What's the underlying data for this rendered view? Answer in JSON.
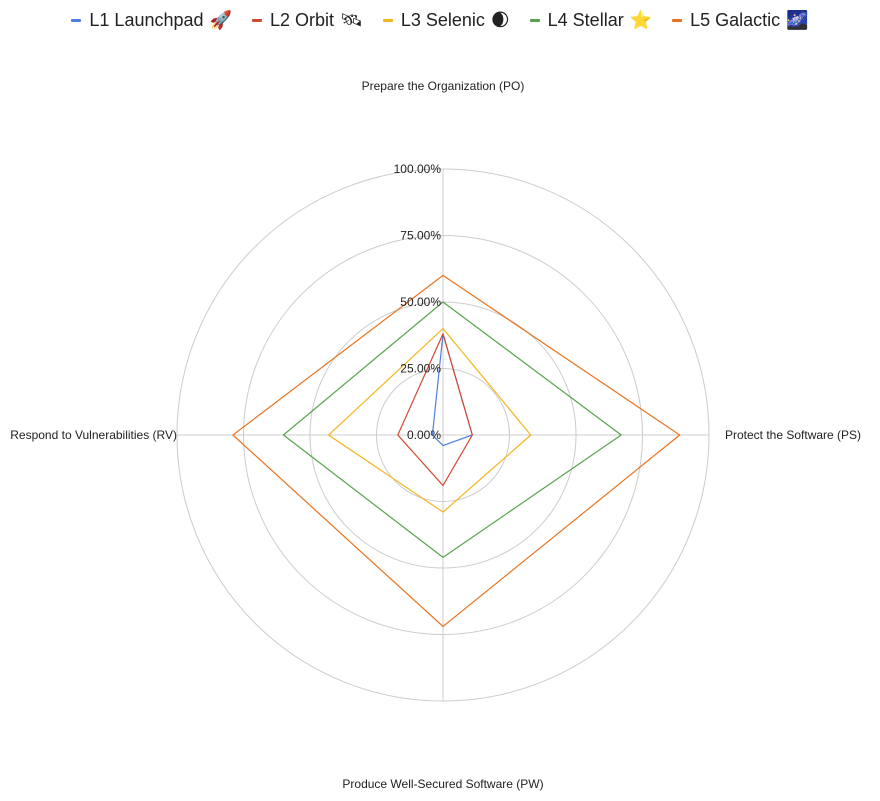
{
  "chart_data": {
    "type": "radar",
    "axes": [
      "Prepare the Organization (PO)",
      "Protect the Software (PS)",
      "Produce Well-Secured Software (PW)",
      "Respond to Vulnerabilities (RV)"
    ],
    "radial_range": [
      0,
      1
    ],
    "radial_ticks": [
      "0.00%",
      "25.00%",
      "50.00%",
      "75.00%",
      "100.00%"
    ],
    "radial_tick_values": [
      0,
      0.25,
      0.5,
      0.75,
      1
    ],
    "grid": true,
    "legend_position": "top",
    "series": [
      {
        "name": "L1 Launchpad",
        "emoji": "🚀",
        "color": "#4f7fe0",
        "values": [
          0.38,
          0.11,
          0.04,
          0.04
        ]
      },
      {
        "name": "L2 Orbit",
        "emoji": "🛰",
        "color": "#d2492f",
        "values": [
          0.38,
          0.11,
          0.19,
          0.17
        ]
      },
      {
        "name": "L3 Selenic",
        "emoji": "🌒",
        "color": "#f3b51c",
        "values": [
          0.4,
          0.33,
          0.29,
          0.43
        ]
      },
      {
        "name": "L4 Stellar",
        "emoji": "⭐",
        "color": "#57a34b",
        "values": [
          0.5,
          0.67,
          0.46,
          0.6
        ]
      },
      {
        "name": "L5 Galactic",
        "emoji": "🌌",
        "color": "#e8731e",
        "values": [
          0.6,
          0.89,
          0.72,
          0.79
        ]
      }
    ]
  }
}
